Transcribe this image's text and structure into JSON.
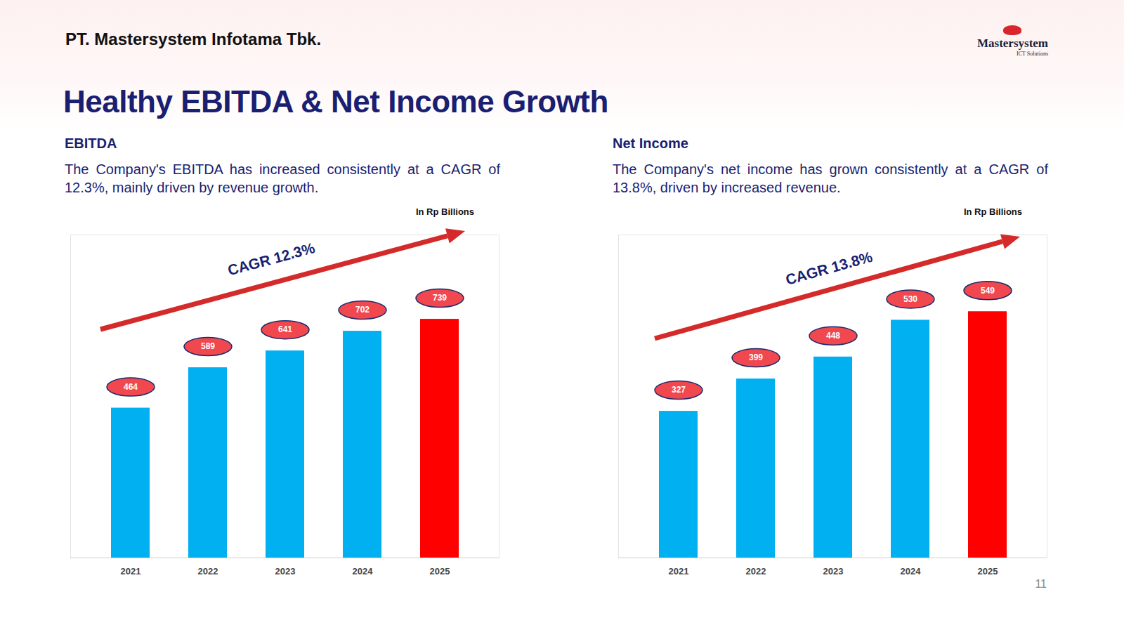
{
  "page": {
    "company": "PT. Mastersystem Infotama Tbk.",
    "title": "Healthy EBITDA & Net Income Growth",
    "logo": "Mastersystem",
    "logo_subtitle": "ICT Solutions",
    "page_number": 11
  },
  "chart_data": [
    {
      "type": "bar",
      "title": "EBITDA",
      "subtitle": "The Company's EBITDA has increased consistently at a CAGR of 12.3%, mainly driven by revenue growth.",
      "ylabel": "In Rp Billions",
      "annotations": [
        "CAGR 12.3%"
      ],
      "categories": [
        "2021",
        "2022",
        "2023",
        "2024",
        "2025"
      ],
      "values": [
        464,
        589,
        641,
        702,
        739
      ],
      "colors": [
        "#00b0f0",
        "#00b0f0",
        "#00b0f0",
        "#00b0f0",
        "#ff0000"
      ],
      "ylim": [
        0,
        1000
      ],
      "data_labels": true,
      "tick_labels": "x",
      "grid": false
    },
    {
      "type": "bar",
      "title": "Net Income",
      "subtitle": "The Company's net income has grown consistently at a CAGR of 13.8%, driven by increased revenue.",
      "ylabel": "In Rp Billions",
      "annotations": [
        "CAGR 13.8%"
      ],
      "categories": [
        "2021",
        "2022",
        "2023",
        "2024",
        "2025"
      ],
      "values": [
        327,
        399,
        448,
        530,
        549
      ],
      "colors": [
        "#00b0f0",
        "#00b0f0",
        "#00b0f0",
        "#00b0f0",
        "#ff0000"
      ],
      "ylim": [
        0,
        720
      ],
      "data_labels": true,
      "tick_labels": "x",
      "grid": false
    }
  ]
}
